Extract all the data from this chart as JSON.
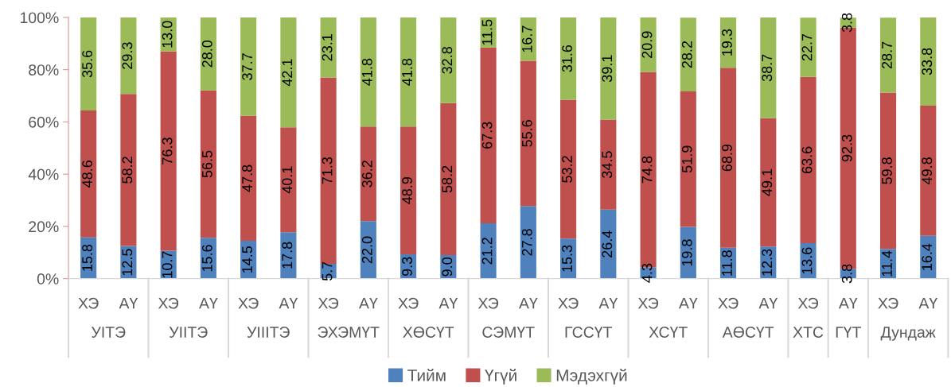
{
  "chart_data": {
    "type": "bar",
    "stacked": true,
    "legend": "bottom",
    "grid": false,
    "categories": [
      "ХЭ",
      "АҮ",
      "ХЭ",
      "АҮ",
      "ХЭ",
      "АҮ",
      "ХЭ",
      "АҮ",
      "ХЭ",
      "АҮ",
      "ХЭ",
      "АҮ",
      "ХЭ",
      "АҮ",
      "ХЭ",
      "АҮ",
      "ХЭ",
      "АҮ",
      "ХЭ",
      "АҮ",
      "ХЭ",
      "АҮ"
    ],
    "annotations": [
      "УІТЭ",
      "УІІТЭ",
      "УІІІТЭ",
      "ЭХЭМҮТ",
      "ХӨСҮТ",
      "СЭМҮТ",
      "ГССҮТ",
      "ХСҮТ",
      "АӨСҮТ",
      "ХТС",
      "ГҮТ",
      "Дундаж"
    ],
    "ylim": [
      0,
      100
    ],
    "yticks": [
      {
        "value": 0,
        "label": "0%"
      },
      {
        "value": 20,
        "label": "20%"
      },
      {
        "value": 40,
        "label": "40%"
      },
      {
        "value": 60,
        "label": "60%"
      },
      {
        "value": 80,
        "label": "80%"
      },
      {
        "value": 100,
        "label": "100%"
      }
    ],
    "series": [
      {
        "name": "Тийм",
        "color": "#4f81bd",
        "values": [
          15.8,
          12.5,
          10.7,
          15.6,
          14.5,
          17.8,
          5.7,
          22.0,
          9.3,
          9.0,
          21.2,
          27.8,
          15.3,
          26.4,
          4.3,
          19.8,
          11.8,
          12.3,
          13.6,
          3.8,
          11.4,
          16.4
        ],
        "value_labels": [
          "15.8",
          "12.5",
          "10.7",
          "15.6",
          "14.5",
          "17.8",
          "5.7",
          "22.0",
          "9.3",
          "9.0",
          "21.2",
          "27.8",
          "15.3",
          "26.4",
          "4.3",
          "19.8",
          "11.8",
          "12.3",
          "13.6",
          "3.8",
          "11.4",
          "16.4"
        ]
      },
      {
        "name": "Үгүй",
        "color": "#c0504d",
        "values": [
          48.6,
          58.2,
          76.3,
          56.5,
          47.8,
          40.1,
          71.3,
          36.2,
          48.9,
          58.2,
          67.3,
          55.6,
          53.2,
          34.5,
          74.8,
          51.9,
          68.9,
          49.1,
          63.6,
          92.3,
          59.8,
          49.8
        ],
        "value_labels": [
          "48.6",
          "58.2",
          "76.3",
          "56.5",
          "47.8",
          "40.1",
          "71.3",
          "36.2",
          "48.9",
          "58.2",
          "67.3",
          "55.6",
          "53.2",
          "34.5",
          "74.8",
          "51.9",
          "68.9",
          "49.1",
          "63.6",
          "92.3",
          "59.8",
          "49.8"
        ]
      },
      {
        "name": "Мэдэхгүй",
        "color": "#9bbb59",
        "values": [
          35.6,
          29.3,
          13.0,
          28.0,
          37.7,
          42.1,
          23.1,
          41.8,
          41.8,
          32.8,
          11.5,
          16.7,
          31.6,
          39.1,
          20.9,
          28.2,
          19.3,
          38.7,
          22.7,
          3.8,
          28.7,
          33.8
        ],
        "value_labels": [
          "35.6",
          "29.3",
          "13.0",
          "28.0",
          "37.7",
          "42.1",
          "23.1",
          "41.8",
          "41.8",
          "32.8",
          "11.5",
          "16.7",
          "31.6",
          "39.1",
          "20.9",
          "28.2",
          "19.3",
          "38.7",
          "22.7",
          "3.8",
          "28.7",
          "33.8"
        ]
      }
    ]
  }
}
